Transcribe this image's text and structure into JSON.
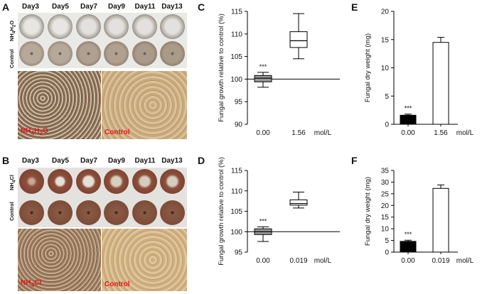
{
  "panels": {
    "A": {
      "letter": "A",
      "days": [
        "Day3",
        "Day5",
        "Day7",
        "Day9",
        "Day11",
        "Day13"
      ],
      "row1_label_parts": [
        "NH",
        "4",
        "H",
        "2",
        "O"
      ],
      "row2_label": "Control",
      "micro_left_parts": [
        "NH",
        "4",
        "H",
        "2",
        "O"
      ],
      "micro_right": "Control"
    },
    "B": {
      "letter": "B",
      "days": [
        "Day3",
        "Day5",
        "Day7",
        "Day9",
        "Day11",
        "Day13"
      ],
      "row1_label_parts": [
        "NH",
        "4",
        "Cl"
      ],
      "row2_label": "Control",
      "micro_left_parts": [
        "NH",
        "4",
        "Cl"
      ],
      "micro_right": "Control"
    },
    "C": {
      "letter": "C"
    },
    "D": {
      "letter": "D"
    },
    "E": {
      "letter": "E"
    },
    "F": {
      "letter": "F"
    }
  },
  "colors": {
    "label_red": "#e0161a",
    "grey_box": "#9a9a9a",
    "black_bar": "#000000"
  },
  "chart_data": [
    {
      "id": "C",
      "type": "box",
      "ylabel": "Fungal growth relative  to control (%)",
      "ylim": [
        90,
        115
      ],
      "yticks": [
        "90",
        "95",
        "100",
        "105",
        "110",
        "115"
      ],
      "categories": [
        "0.00",
        "1.56"
      ],
      "unit": "mol/L",
      "reference_line": 100,
      "boxes": [
        {
          "category": "0.00",
          "min": 98.2,
          "q1": 99.4,
          "median": 100.2,
          "q3": 100.8,
          "max": 101.5,
          "fill": "grey",
          "annotation": "***"
        },
        {
          "category": "1.56",
          "min": 104.5,
          "q1": 107.0,
          "median": 108.5,
          "q3": 110.5,
          "max": 114.5,
          "fill": "white",
          "annotation": ""
        }
      ]
    },
    {
      "id": "D",
      "type": "box",
      "ylabel": "Fungal growth relative  to control (%)",
      "ylim": [
        95,
        115
      ],
      "yticks": [
        "95",
        "100",
        "105",
        "110",
        "115"
      ],
      "categories": [
        "0.00",
        "0.019"
      ],
      "unit": "mol/L",
      "reference_line": 100,
      "boxes": [
        {
          "category": "0.00",
          "min": 97.6,
          "q1": 99.3,
          "median": 100.0,
          "q3": 100.7,
          "max": 101.2,
          "fill": "grey",
          "annotation": "***"
        },
        {
          "category": "0.019",
          "min": 105.8,
          "q1": 106.5,
          "median": 106.9,
          "q3": 107.8,
          "max": 109.7,
          "fill": "white",
          "annotation": ""
        }
      ]
    },
    {
      "id": "E",
      "type": "bar",
      "ylabel": "Fungal dry weight (mg)",
      "ylim": [
        0,
        20
      ],
      "yticks": [
        "0",
        "5",
        "10",
        "15",
        "20"
      ],
      "categories": [
        "0.00",
        "1.56"
      ],
      "unit": "mol/L",
      "values": [
        1.6,
        14.5
      ],
      "errors": [
        0.2,
        0.9
      ],
      "fills": [
        "black",
        "white"
      ],
      "annotations": [
        "***",
        ""
      ]
    },
    {
      "id": "F",
      "type": "bar",
      "ylabel": "Fungal dry weight (mg)",
      "ylim": [
        0,
        35
      ],
      "yticks": [
        "0",
        "5",
        "10",
        "15",
        "20",
        "25",
        "30",
        "35"
      ],
      "categories": [
        "0.00",
        "0.019"
      ],
      "unit": "mol/L",
      "values": [
        4.6,
        27.3
      ],
      "errors": [
        0.5,
        1.5
      ],
      "fills": [
        "black",
        "white"
      ],
      "annotations": [
        "***",
        ""
      ]
    }
  ]
}
